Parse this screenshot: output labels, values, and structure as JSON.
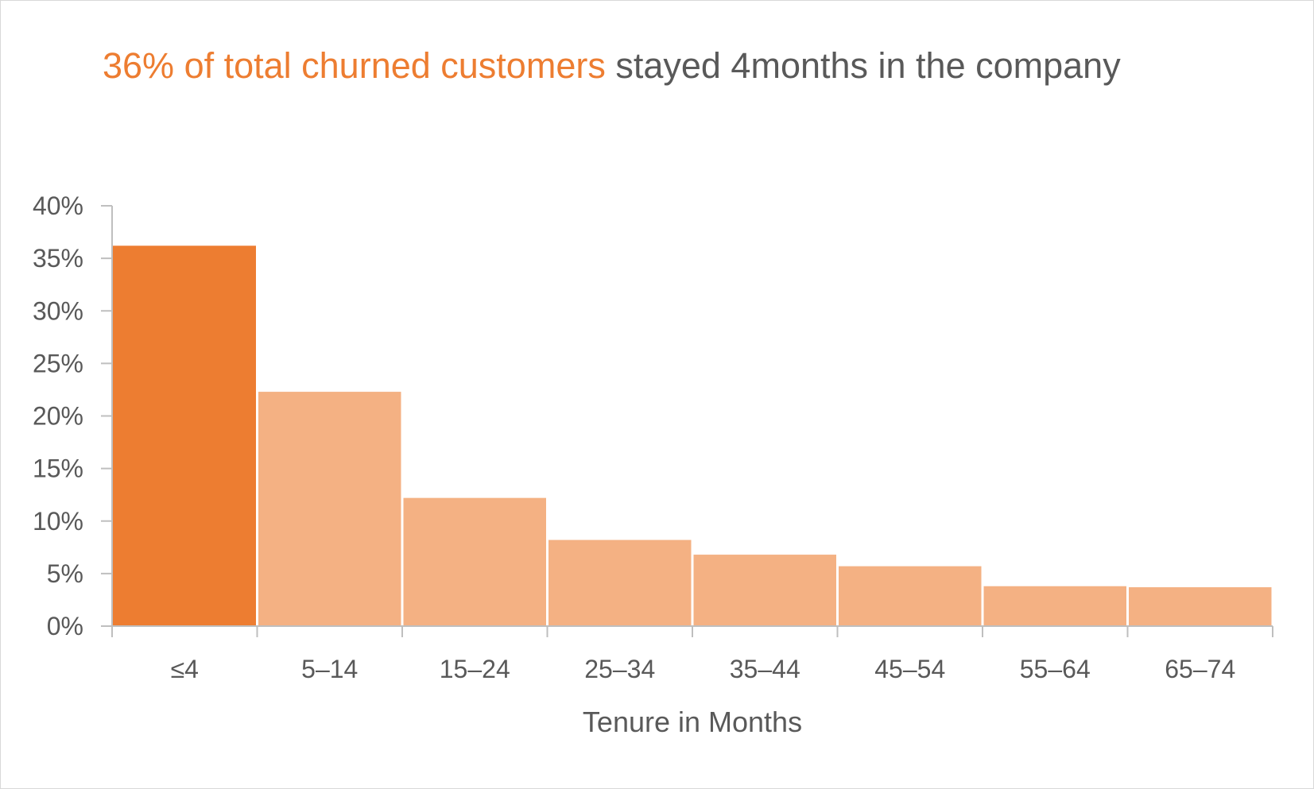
{
  "chart_data": {
    "type": "bar",
    "title_highlight": "36% of total churned customers",
    "title_rest": " stayed 4months in the company",
    "categories": [
      "≤4",
      "5–14",
      "15–24",
      "25–34",
      "35–44",
      "45–54",
      "55–64",
      "65–74"
    ],
    "values": [
      36.2,
      22.3,
      12.2,
      8.2,
      6.8,
      5.7,
      3.8,
      3.7
    ],
    "highlight_index": 0,
    "xlabel": "Tenure in Months",
    "ylabel": "",
    "ylim": [
      0,
      40
    ],
    "yticks": [
      {
        "value": 0,
        "label": "0%"
      },
      {
        "value": 5,
        "label": "5%"
      },
      {
        "value": 10,
        "label": "10%"
      },
      {
        "value": 15,
        "label": "15%"
      },
      {
        "value": 20,
        "label": "20%"
      },
      {
        "value": 25,
        "label": "25%"
      },
      {
        "value": 30,
        "label": "30%"
      },
      {
        "value": 35,
        "label": "35%"
      },
      {
        "value": 40,
        "label": "40%"
      }
    ],
    "grid": false,
    "legend": "none",
    "colors": {
      "highlight": "#ed7d31",
      "bar": "#f4b183",
      "axis": "#bfbfbf",
      "text": "#595959"
    }
  }
}
